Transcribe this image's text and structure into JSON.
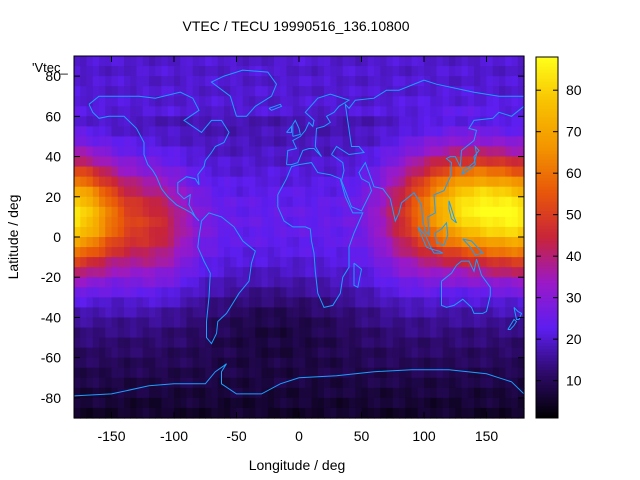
{
  "chart_data": {
    "type": "heatmap",
    "title": "VTEC / TECU 19990516_136.10800",
    "xlabel": "Longitude / deg",
    "ylabel": "Latitude / deg",
    "series_key_label": "'Vtec_",
    "xlim": [
      -180,
      180
    ],
    "ylim": [
      -90,
      90
    ],
    "x_ticks": [
      -150,
      -100,
      -50,
      0,
      50,
      100,
      150
    ],
    "y_ticks": [
      -80,
      -60,
      -40,
      -20,
      0,
      20,
      40,
      60,
      80
    ],
    "colorbar": {
      "min": 1,
      "max": 88,
      "ticks": [
        10,
        20,
        30,
        40,
        50,
        60,
        70,
        80
      ]
    },
    "colormap": [
      "#000000",
      "#2d0a6a",
      "#5d1ef0",
      "#9a19c8",
      "#c8243a",
      "#e8560a",
      "#f39500",
      "#f8c100",
      "#ffff1a"
    ],
    "map_outline_color": "#1aa0ff",
    "peaks": [
      {
        "lon": -170,
        "lat": 10,
        "vtec": 68
      },
      {
        "lon": 135,
        "lat": 15,
        "vtec": 72
      }
    ],
    "grid": false
  }
}
